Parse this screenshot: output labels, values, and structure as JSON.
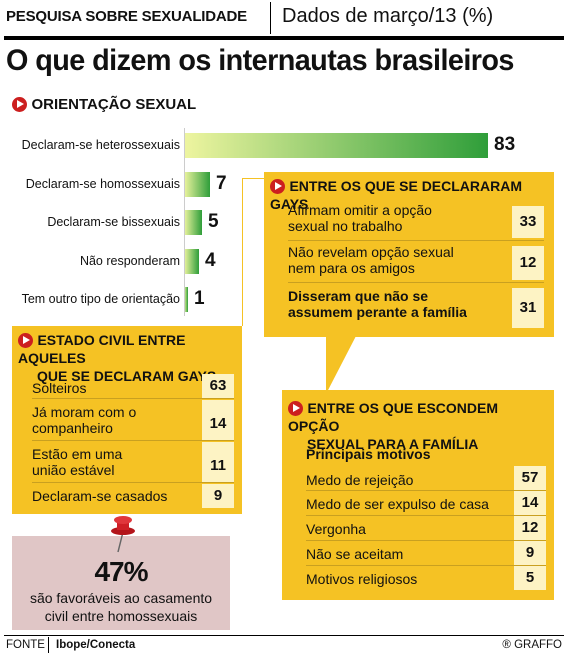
{
  "header": {
    "left": "PESQUISA SOBRE SEXUALIDADE",
    "right": "Dados de março/13 (%)"
  },
  "title": "O que dizem os internautas brasileiros",
  "section_orientation": {
    "title": "ORIENTAÇÃO SEXUAL"
  },
  "chart_data": {
    "type": "bar",
    "title": "ORIENTAÇÃO SEXUAL",
    "orientation": "horizontal",
    "unit": "%",
    "categories": [
      "Declaram-se heterossexuais",
      "Declaram-se homossexuais",
      "Declaram-se bissexuais",
      "Não responderam",
      "Tem outro tipo de orientação"
    ],
    "values": [
      83,
      7,
      5,
      4,
      1
    ],
    "xlim": [
      0,
      83
    ]
  },
  "gays_box": {
    "title": "ENTRE OS QUE SE DECLARARAM GAYS",
    "rows": [
      {
        "label_1": "Afirmam omitir a opção",
        "label_2": "sexual no trabalho",
        "value": "33"
      },
      {
        "label_1": "Não revelam opção sexual",
        "label_2": "nem para os amigos",
        "value": "12"
      },
      {
        "label_1": "Disseram que não se",
        "label_2": "assumem perante a família",
        "value": "31"
      }
    ]
  },
  "civil_box": {
    "title_1": "ESTADO CIVIL ENTRE AQUELES",
    "title_2": "QUE SE DECLARAM GAYS",
    "rows": [
      {
        "label_1": "Solteiros",
        "label_2": "",
        "value": "63"
      },
      {
        "label_1": "Já moram com o",
        "label_2": "companheiro",
        "value": "14"
      },
      {
        "label_1": "Estão em uma",
        "label_2": "união estável",
        "value": "11"
      },
      {
        "label_1": "Declaram-se casados",
        "label_2": "",
        "value": "9"
      }
    ]
  },
  "family_box": {
    "title_1": "ENTRE OS QUE ESCONDEM OPÇÃO",
    "title_2": "SEXUAL PARA A FAMÍLIA",
    "subtitle": "Principais motivos",
    "rows": [
      {
        "label": "Medo de rejeição",
        "value": "57"
      },
      {
        "label": "Medo de ser expulso de casa",
        "value": "14"
      },
      {
        "label": "Vergonha",
        "value": "12"
      },
      {
        "label": "Não se aceitam",
        "value": "9"
      },
      {
        "label": "Motivos religiosos",
        "value": "5"
      }
    ]
  },
  "highlight": {
    "value": "47%",
    "text_1": "são favoráveis ao casamento",
    "text_2": "civil entre homossexuais"
  },
  "footer": {
    "source_label": "FONTE",
    "source": "Ibope/Conecta",
    "credit": "® GRAFFO"
  },
  "colors": {
    "box": "#f5c224",
    "accent_red": "#cc1f1f",
    "bar_start": "#eef5a0",
    "bar_end": "#2f9e3a",
    "highlight_box": "#e0c6c6"
  }
}
